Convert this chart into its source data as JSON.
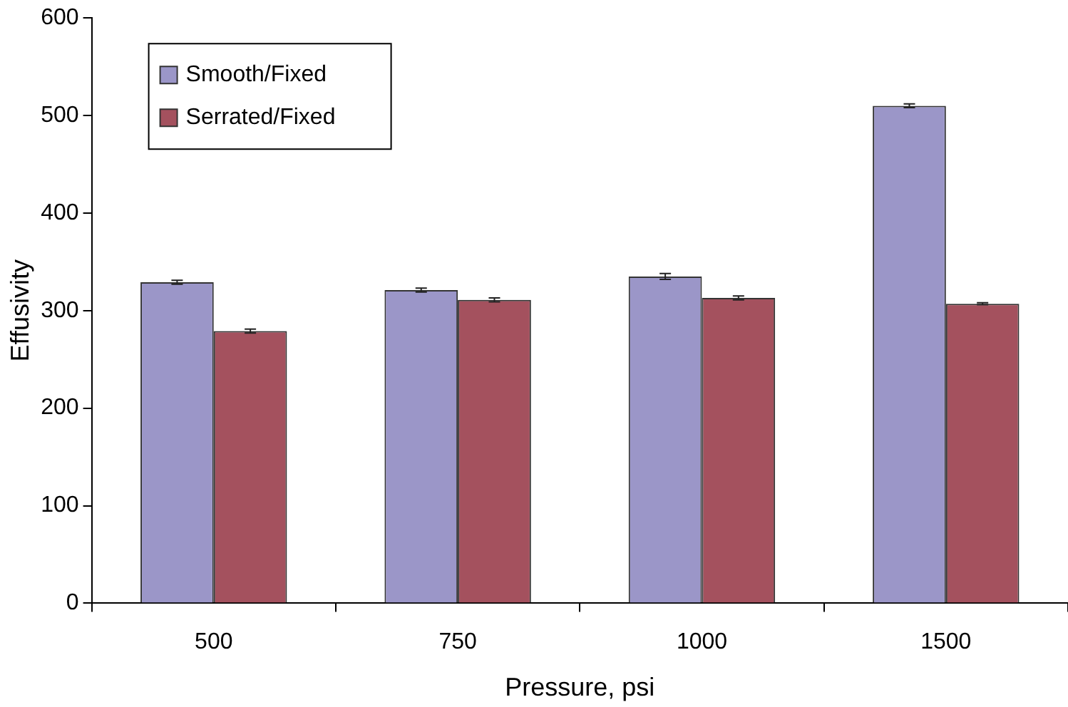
{
  "chart_data": {
    "type": "bar",
    "xlabel": "Pressure, psi",
    "ylabel": "Effusivity",
    "categories": [
      "500",
      "750",
      "1000",
      "1500"
    ],
    "series": [
      {
        "name": "Smooth/Fixed",
        "color": "#9b96c8",
        "values": [
          329,
          321,
          335,
          510
        ],
        "errors": [
          2,
          2,
          3,
          2
        ]
      },
      {
        "name": "Serrated/Fixed",
        "color": "#a4515e",
        "values": [
          279,
          311,
          313,
          307
        ],
        "errors": [
          2,
          2,
          2,
          1
        ]
      }
    ],
    "ylim": [
      0,
      600
    ],
    "yticks": [
      0,
      100,
      200,
      300,
      400,
      500,
      600
    ],
    "grid": false,
    "legend": "top left"
  }
}
